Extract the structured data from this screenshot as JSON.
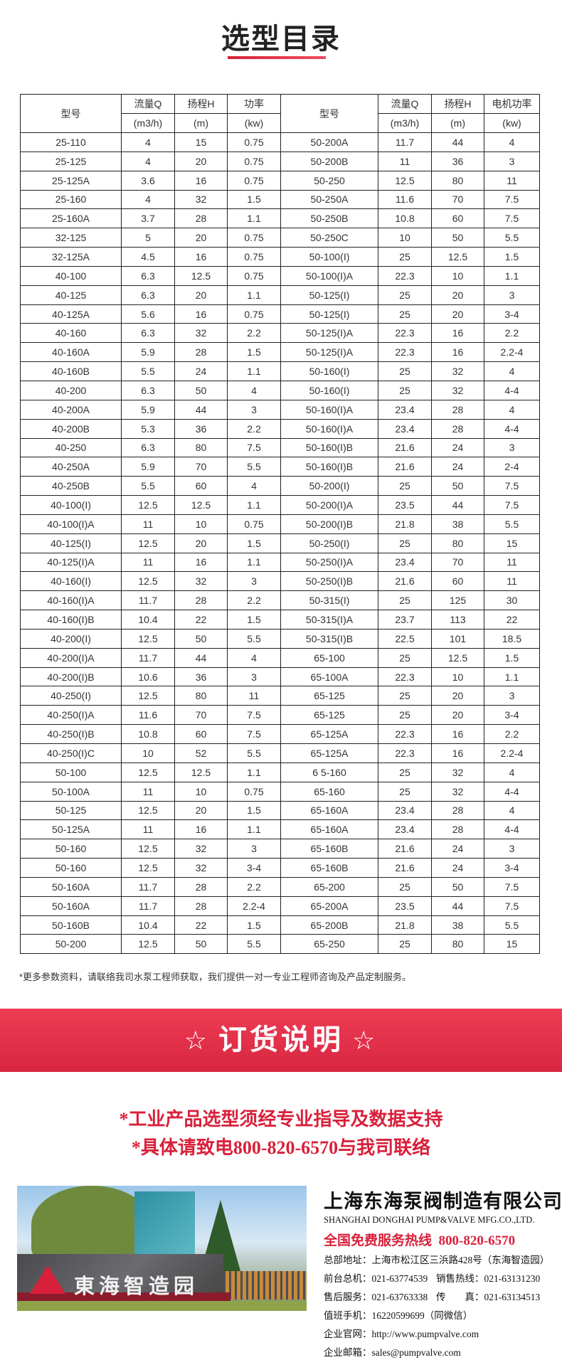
{
  "title": "选型目录",
  "table": {
    "headers": [
      {
        "label": "型号",
        "unit": ""
      },
      {
        "label": "流量Q",
        "unit": "(m3/h)"
      },
      {
        "label": "扬程H",
        "unit": "(m)"
      },
      {
        "label": "功率",
        "unit": "(kw)"
      },
      {
        "label": "型号",
        "unit": ""
      },
      {
        "label": "流量Q",
        "unit": "(m3/h)"
      },
      {
        "label": "扬程H",
        "unit": "(m)"
      },
      {
        "label": "电机功率",
        "unit": "(kw)"
      }
    ],
    "rows": [
      [
        "25-110",
        "4",
        "15",
        "0.75",
        "50-200A",
        "11.7",
        "44",
        "4"
      ],
      [
        "25-125",
        "4",
        "20",
        "0.75",
        "50-200B",
        "11",
        "36",
        "3"
      ],
      [
        "25-125A",
        "3.6",
        "16",
        "0.75",
        "50-250",
        "12.5",
        "80",
        "11"
      ],
      [
        "25-160",
        "4",
        "32",
        "1.5",
        "50-250A",
        "11.6",
        "70",
        "7.5"
      ],
      [
        "25-160A",
        "3.7",
        "28",
        "1.1",
        "50-250B",
        "10.8",
        "60",
        "7.5"
      ],
      [
        "32-125",
        "5",
        "20",
        "0.75",
        "50-250C",
        "10",
        "50",
        "5.5"
      ],
      [
        "32-125A",
        "4.5",
        "16",
        "0.75",
        "50-100(I)",
        "25",
        "12.5",
        "1.5"
      ],
      [
        "40-100",
        "6.3",
        "12.5",
        "0.75",
        "50-100(I)A",
        "22.3",
        "10",
        "1.1"
      ],
      [
        "40-125",
        "6.3",
        "20",
        "1.1",
        "50-125(I)",
        "25",
        "20",
        "3"
      ],
      [
        "40-125A",
        "5.6",
        "16",
        "0.75",
        "50-125(I)",
        "25",
        "20",
        "3-4"
      ],
      [
        "40-160",
        "6.3",
        "32",
        "2.2",
        "50-125(I)A",
        "22.3",
        "16",
        "2.2"
      ],
      [
        "40-160A",
        "5.9",
        "28",
        "1.5",
        "50-125(I)A",
        "22.3",
        "16",
        "2.2-4"
      ],
      [
        "40-160B",
        "5.5",
        "24",
        "1.1",
        "50-160(I)",
        "25",
        "32",
        "4"
      ],
      [
        "40-200",
        "6.3",
        "50",
        "4",
        "50-160(I)",
        "25",
        "32",
        "4-4"
      ],
      [
        "40-200A",
        "5.9",
        "44",
        "3",
        "50-160(I)A",
        "23.4",
        "28",
        "4"
      ],
      [
        "40-200B",
        "5.3",
        "36",
        "2.2",
        "50-160(I)A",
        "23.4",
        "28",
        "4-4"
      ],
      [
        "40-250",
        "6.3",
        "80",
        "7.5",
        "50-160(I)B",
        "21.6",
        "24",
        "3"
      ],
      [
        "40-250A",
        "5.9",
        "70",
        "5.5",
        "50-160(I)B",
        "21.6",
        "24",
        "2-4"
      ],
      [
        "40-250B",
        "5.5",
        "60",
        "4",
        "50-200(I)",
        "25",
        "50",
        "7.5"
      ],
      [
        "40-100(I)",
        "12.5",
        "12.5",
        "1.1",
        "50-200(I)A",
        "23.5",
        "44",
        "7.5"
      ],
      [
        "40-100(I)A",
        "11",
        "10",
        "0.75",
        "50-200(I)B",
        "21.8",
        "38",
        "5.5"
      ],
      [
        "40-125(I)",
        "12.5",
        "20",
        "1.5",
        "50-250(I)",
        "25",
        "80",
        "15"
      ],
      [
        "40-125(I)A",
        "11",
        "16",
        "1.1",
        "50-250(I)A",
        "23.4",
        "70",
        "11"
      ],
      [
        "40-160(I)",
        "12.5",
        "32",
        "3",
        "50-250(I)B",
        "21.6",
        "60",
        "11"
      ],
      [
        "40-160(I)A",
        "11.7",
        "28",
        "2.2",
        "50-315(I)",
        "25",
        "125",
        "30"
      ],
      [
        "40-160(I)B",
        "10.4",
        "22",
        "1.5",
        "50-315(I)A",
        "23.7",
        "113",
        "22"
      ],
      [
        "40-200(I)",
        "12.5",
        "50",
        "5.5",
        "50-315(I)B",
        "22.5",
        "101",
        "18.5"
      ],
      [
        "40-200(I)A",
        "11.7",
        "44",
        "4",
        "65-100",
        "25",
        "12.5",
        "1.5"
      ],
      [
        "40-200(I)B",
        "10.6",
        "36",
        "3",
        "65-100A",
        "22.3",
        "10",
        "1.1"
      ],
      [
        "40-250(I)",
        "12.5",
        "80",
        "11",
        "65-125",
        "25",
        "20",
        "3"
      ],
      [
        "40-250(I)A",
        "11.6",
        "70",
        "7.5",
        "65-125",
        "25",
        "20",
        "3-4"
      ],
      [
        "40-250(I)B",
        "10.8",
        "60",
        "7.5",
        "65-125A",
        "22.3",
        "16",
        "2.2"
      ],
      [
        "40-250(I)C",
        "10",
        "52",
        "5.5",
        "65-125A",
        "22.3",
        "16",
        "2.2-4"
      ],
      [
        "50-100",
        "12.5",
        "12.5",
        "1.1",
        "6 5-160",
        "25",
        "32",
        "4"
      ],
      [
        "50-100A",
        "11",
        "10",
        "0.75",
        "65-160",
        "25",
        "32",
        "4-4"
      ],
      [
        "50-125",
        "12.5",
        "20",
        "1.5",
        "65-160A",
        "23.4",
        "28",
        "4"
      ],
      [
        "50-125A",
        "11",
        "16",
        "1.1",
        "65-160A",
        "23.4",
        "28",
        "4-4"
      ],
      [
        "50-160",
        "12.5",
        "32",
        "3",
        "65-160B",
        "21.6",
        "24",
        "3"
      ],
      [
        "50-160",
        "12.5",
        "32",
        "3-4",
        "65-160B",
        "21.6",
        "24",
        "3-4"
      ],
      [
        "50-160A",
        "11.7",
        "28",
        "2.2",
        "65-200",
        "25",
        "50",
        "7.5"
      ],
      [
        "50-160A",
        "11.7",
        "28",
        "2.2-4",
        "65-200A",
        "23.5",
        "44",
        "7.5"
      ],
      [
        "50-160B",
        "10.4",
        "22",
        "1.5",
        "65-200B",
        "21.8",
        "38",
        "5.5"
      ],
      [
        "50-200",
        "12.5",
        "50",
        "5.5",
        "65-250",
        "25",
        "80",
        "15"
      ]
    ]
  },
  "footnote": "*更多参数资料，请联络我司水泵工程师获取，我们提供一对一专业工程师咨询及产品定制服务。",
  "banner": {
    "star": "☆",
    "title": "订货说明"
  },
  "notes": [
    "*工业产品选型须经专业指导及数据支持",
    "*具体请致电800-820-6570与我司联络"
  ],
  "photo": {
    "sign_text": "東海智造园"
  },
  "company": {
    "name": "上海东海泵阀制造有限公司",
    "name_en": "SHANGHAI DONGHAI PUMP&VALVE MFG.CO.,LTD.",
    "hotline_label": "全国免费服务热线",
    "hotline": "800-820-6570",
    "address": "总部地址：上海市松江区三浜路428号（东海智造园）",
    "front_desk": "前台总机：021-63774539",
    "sales": "销售热线：021-63131230",
    "after_sales": "售后服务：021-63763338",
    "fax": "传　　真：021-63134513",
    "duty_phone": "值班手机：16220599699（同微信）",
    "website": "企业官网：http://www.pumpvalve.com",
    "email": "企业邮箱：sales@pumpvalve.com"
  },
  "colors": {
    "accent": "#d9203a",
    "banner": "#e33149",
    "text": "#222222"
  }
}
